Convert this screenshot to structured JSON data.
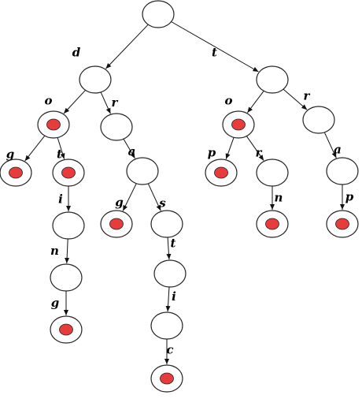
{
  "diagram": {
    "type": "trie",
    "nodes": [
      {
        "id": "root",
        "terminal": false
      },
      {
        "id": "d",
        "terminal": false
      },
      {
        "id": "do",
        "terminal": true
      },
      {
        "id": "dog",
        "terminal": true
      },
      {
        "id": "dot",
        "terminal": true
      },
      {
        "id": "doti",
        "terminal": false
      },
      {
        "id": "dotin",
        "terminal": false
      },
      {
        "id": "doting",
        "terminal": true
      },
      {
        "id": "dr",
        "terminal": false
      },
      {
        "id": "dra",
        "terminal": false
      },
      {
        "id": "drag",
        "terminal": true
      },
      {
        "id": "dras",
        "terminal": false
      },
      {
        "id": "drast",
        "terminal": false
      },
      {
        "id": "drasti",
        "terminal": false
      },
      {
        "id": "drastic",
        "terminal": true
      },
      {
        "id": "t",
        "terminal": false
      },
      {
        "id": "to",
        "terminal": true
      },
      {
        "id": "top",
        "terminal": true
      },
      {
        "id": "tor",
        "terminal": false
      },
      {
        "id": "torn",
        "terminal": true
      },
      {
        "id": "tr",
        "terminal": false
      },
      {
        "id": "tra",
        "terminal": false
      },
      {
        "id": "trap",
        "terminal": true
      }
    ],
    "edges": [
      {
        "from": "root",
        "to": "d",
        "label": "d"
      },
      {
        "from": "root",
        "to": "t",
        "label": "t"
      },
      {
        "from": "d",
        "to": "do",
        "label": "o"
      },
      {
        "from": "d",
        "to": "dr",
        "label": "r"
      },
      {
        "from": "do",
        "to": "dog",
        "label": "g"
      },
      {
        "from": "do",
        "to": "dot",
        "label": "t"
      },
      {
        "from": "dot",
        "to": "doti",
        "label": "i"
      },
      {
        "from": "doti",
        "to": "dotin",
        "label": "n"
      },
      {
        "from": "dotin",
        "to": "doting",
        "label": "g"
      },
      {
        "from": "dr",
        "to": "dra",
        "label": "a"
      },
      {
        "from": "dra",
        "to": "drag",
        "label": "g"
      },
      {
        "from": "dra",
        "to": "dras",
        "label": "s"
      },
      {
        "from": "dras",
        "to": "drast",
        "label": "t"
      },
      {
        "from": "drast",
        "to": "drasti",
        "label": "i"
      },
      {
        "from": "drasti",
        "to": "drastic",
        "label": "c"
      },
      {
        "from": "t",
        "to": "to",
        "label": "o"
      },
      {
        "from": "t",
        "to": "tr",
        "label": "r"
      },
      {
        "from": "to",
        "to": "top",
        "label": "p"
      },
      {
        "from": "to",
        "to": "tor",
        "label": "r"
      },
      {
        "from": "tor",
        "to": "torn",
        "label": "n"
      },
      {
        "from": "tr",
        "to": "tra",
        "label": "a"
      },
      {
        "from": "tra",
        "to": "trap",
        "label": "p"
      }
    ]
  }
}
